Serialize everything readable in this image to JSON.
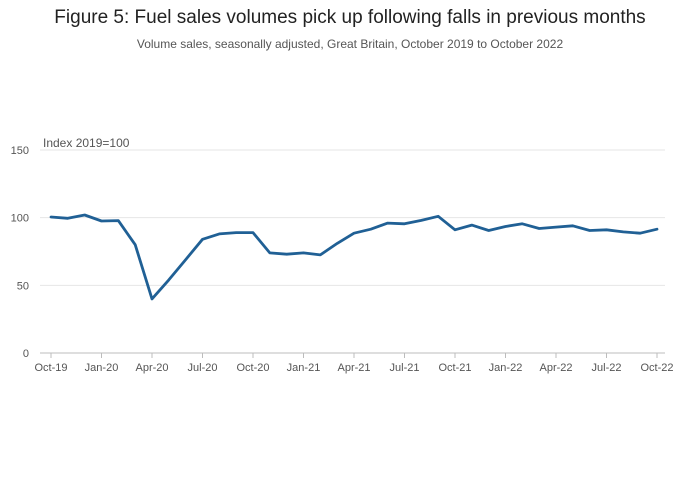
{
  "chart_data": {
    "type": "line",
    "title": "Figure 5: Fuel sales volumes pick up following falls in previous months",
    "subtitle": "Volume sales, seasonally adjusted, Great Britain, October 2019 to October 2022",
    "ylabel": "Index 2019=100",
    "ylim": [
      0,
      150
    ],
    "yticks": [
      0,
      50,
      100,
      150
    ],
    "grid": true,
    "line_color": "#206095",
    "x_tick_labels": [
      "Oct-19",
      "Jan-20",
      "Apr-20",
      "Jul-20",
      "Oct-20",
      "Jan-21",
      "Apr-21",
      "Jul-21",
      "Oct-21",
      "Jan-22",
      "Apr-22",
      "Jul-22",
      "Oct-22"
    ],
    "x": [
      "Oct-19",
      "Nov-19",
      "Dec-19",
      "Jan-20",
      "Feb-20",
      "Mar-20",
      "Apr-20",
      "May-20",
      "Jun-20",
      "Jul-20",
      "Aug-20",
      "Sep-20",
      "Oct-20",
      "Nov-20",
      "Dec-20",
      "Jan-21",
      "Feb-21",
      "Mar-21",
      "Apr-21",
      "May-21",
      "Jun-21",
      "Jul-21",
      "Aug-21",
      "Sep-21",
      "Oct-21",
      "Nov-21",
      "Dec-21",
      "Jan-22",
      "Feb-22",
      "Mar-22",
      "Apr-22",
      "May-22",
      "Jun-22",
      "Jul-22",
      "Aug-22",
      "Sep-22",
      "Oct-22"
    ],
    "series": [
      {
        "values": [
          100.5,
          99.5,
          102,
          97.5,
          97.8,
          80,
          40,
          54,
          69,
          84,
          88,
          89,
          89,
          74,
          73,
          74,
          72.5,
          81,
          88.5,
          91.5,
          96,
          95.5,
          98,
          101,
          91,
          94.5,
          90.5,
          93.5,
          95.5,
          92,
          93,
          94,
          90.5,
          91,
          89.5,
          88.5,
          91.5
        ]
      }
    ]
  }
}
